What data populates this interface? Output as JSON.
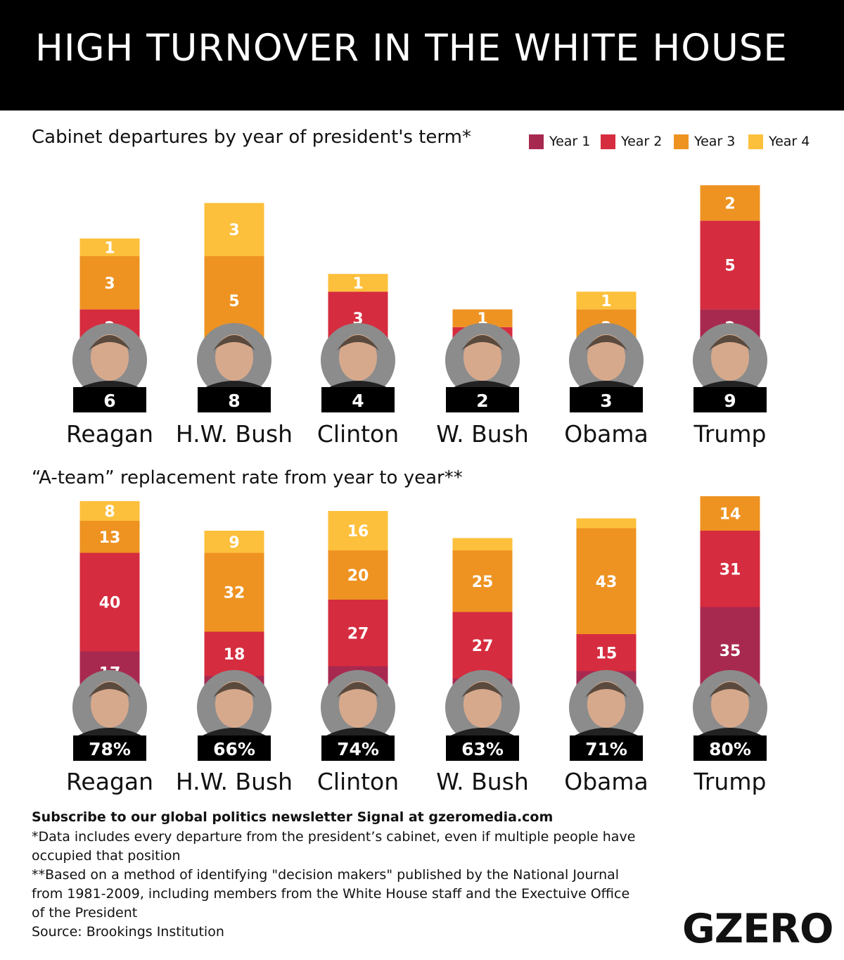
{
  "title": "HIGH TURNOVER IN THE WHITE HOUSE",
  "colors": {
    "year1": "#a8294f",
    "year2": "#d62c3f",
    "year3": "#ee9322",
    "year4": "#fdc03c",
    "circle": "#8c8c8c",
    "label_box": "#000000"
  },
  "legend": [
    {
      "label": "Year 1",
      "color": "#a8294f"
    },
    {
      "label": "Year 2",
      "color": "#d62c3f"
    },
    {
      "label": "Year 3",
      "color": "#ee9322"
    },
    {
      "label": "Year 4",
      "color": "#fdc03c"
    }
  ],
  "chart_data": [
    {
      "type": "bar",
      "stacked": true,
      "title": "Cabinet departures by year of president's term*",
      "categories": [
        "Reagan",
        "H.W. Bush",
        "Clinton",
        "W. Bush",
        "Obama",
        "Trump"
      ],
      "series": [
        {
          "name": "Year 1",
          "values": [
            0,
            0,
            0,
            0,
            0,
            2
          ]
        },
        {
          "name": "Year 2",
          "values": [
            2,
            0,
            3,
            1,
            0,
            5
          ]
        },
        {
          "name": "Year 3",
          "values": [
            3,
            5,
            0,
            1,
            2,
            2
          ]
        },
        {
          "name": "Year 4",
          "values": [
            1,
            3,
            1,
            0,
            1,
            0
          ]
        }
      ],
      "totals": [
        "6",
        "8",
        "4",
        "2",
        "3",
        "9"
      ],
      "president_icons": [
        "reagan-portrait-icon",
        "hw-bush-portrait-icon",
        "clinton-portrait-icon",
        "w-bush-portrait-icon",
        "obama-portrait-icon",
        "trump-portrait-icon"
      ]
    },
    {
      "type": "bar",
      "stacked": true,
      "title": "“A-team” replacement rate from year to year**",
      "categories": [
        "Reagan",
        "H.W. Bush",
        "Clinton",
        "W. Bush",
        "Obama",
        "Trump"
      ],
      "series": [
        {
          "name": "Year 1",
          "values": [
            17,
            7,
            11,
            6,
            9,
            35
          ]
        },
        {
          "name": "Year 2",
          "values": [
            40,
            18,
            27,
            27,
            15,
            31
          ]
        },
        {
          "name": "Year 3",
          "values": [
            13,
            32,
            20,
            25,
            43,
            14
          ]
        },
        {
          "name": "Year 4",
          "values": [
            8,
            9,
            16,
            5,
            4,
            0
          ]
        }
      ],
      "totals": [
        "78%",
        "66%",
        "74%",
        "63%",
        "71%",
        "80%"
      ],
      "president_icons": [
        "reagan-portrait-icon",
        "hw-bush-portrait-icon",
        "clinton-portrait-icon",
        "w-bush-portrait-icon",
        "obama-portrait-icon",
        "trump-portrait-icon"
      ]
    }
  ],
  "footer": {
    "subscribe": "Subscribe to our global politics newsletter Signal at gzeromedia.com",
    "note1": "*Data includes every departure from the president’s cabinet, even if multiple people have occupied that position",
    "note2": "**Based on a method of identifying \"decision makers\" published by the National Journal from 1981-2009, including members from the White House staff and the Exectuive Office of the President",
    "source": "Source: Brookings Institution"
  },
  "logo": "GZERO"
}
